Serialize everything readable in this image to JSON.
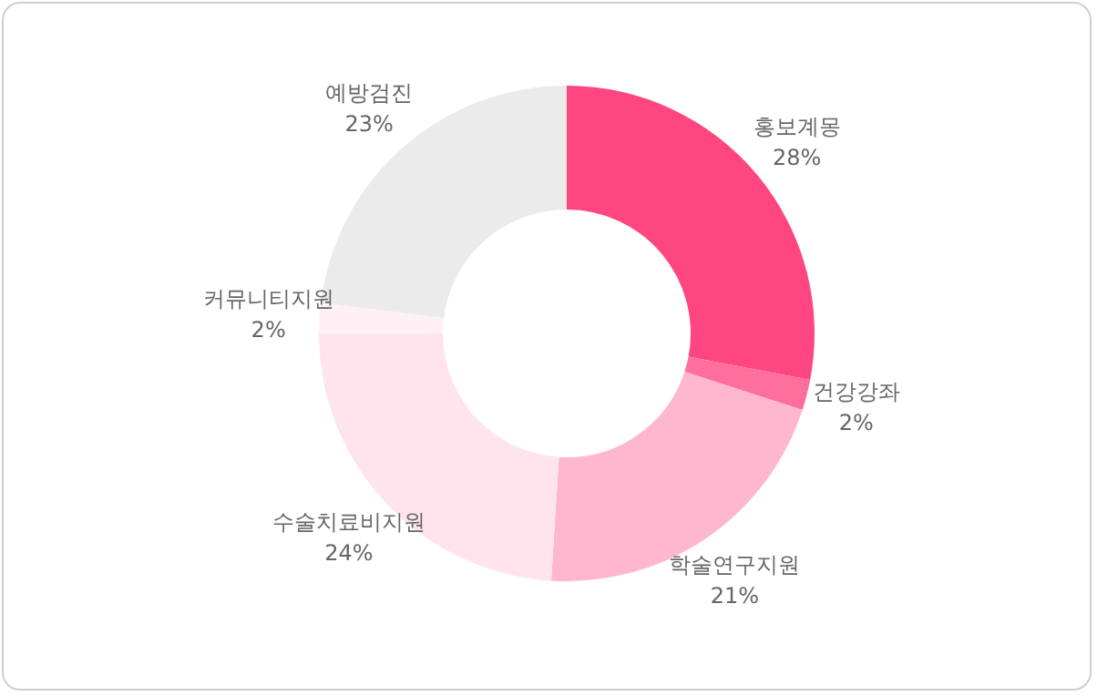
{
  "chart_data": {
    "type": "donut",
    "categories": [
      "홍보계몽",
      "건강강좌",
      "학술연구지원",
      "수술치료비지원",
      "커뮤니티지원",
      "예방검진"
    ],
    "values": [
      28,
      2,
      21,
      24,
      2,
      23
    ],
    "value_labels": [
      "28%",
      "2%",
      "21%",
      "24%",
      "2%",
      "23%"
    ],
    "colors": [
      "#ff4680",
      "#ff6e9c",
      "#ffb6cf",
      "#ffe4ee",
      "#fff0f5",
      "#ebebeb"
    ],
    "legend": false
  }
}
